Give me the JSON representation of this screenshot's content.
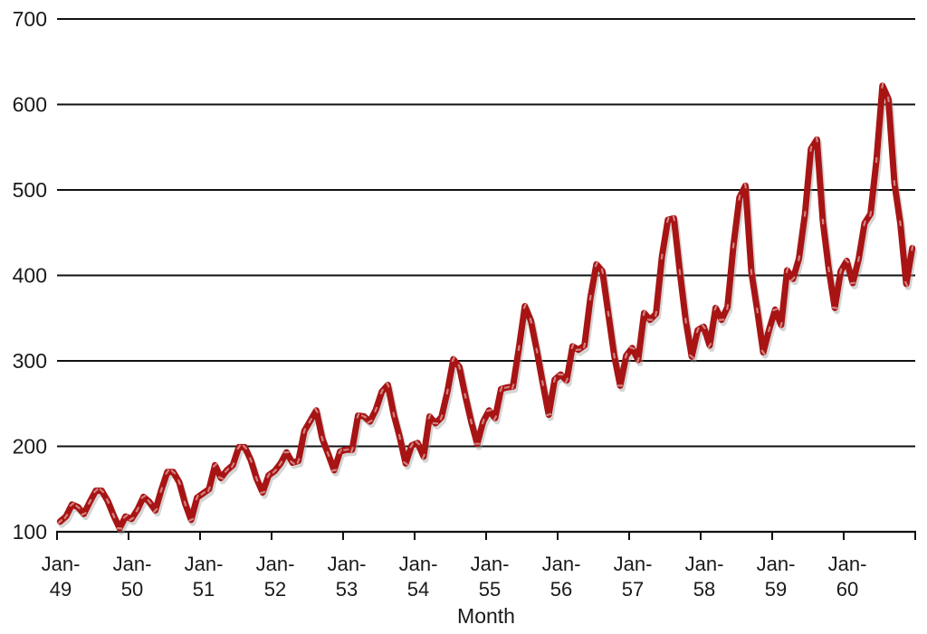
{
  "chart_data": {
    "type": "line",
    "title": "",
    "xlabel": "Month",
    "ylabel": "",
    "ylim": [
      100,
      700
    ],
    "yticks": [
      100,
      200,
      300,
      400,
      500,
      600,
      700
    ],
    "grid": "horizontal",
    "legend": "none",
    "axis_color": "#111111",
    "text_color": "#1a1a1a",
    "xticklabels": [
      {
        "top": "Jan-",
        "bottom": "49"
      },
      {
        "top": "Jan-",
        "bottom": "50"
      },
      {
        "top": "Jan-",
        "bottom": "51"
      },
      {
        "top": "Jan-",
        "bottom": "52"
      },
      {
        "top": "Jan-",
        "bottom": "53"
      },
      {
        "top": "Jan-",
        "bottom": "54"
      },
      {
        "top": "Jan-",
        "bottom": "55"
      },
      {
        "top": "Jan-",
        "bottom": "56"
      },
      {
        "top": "Jan-",
        "bottom": "57"
      },
      {
        "top": "Jan-",
        "bottom": "58"
      },
      {
        "top": "Jan-",
        "bottom": "59"
      },
      {
        "top": "Jan-",
        "bottom": "60"
      }
    ],
    "months_per_tick": 12,
    "series": [
      {
        "name": "",
        "color": "#A81414",
        "marker": "dash",
        "marker_color": "#D89694",
        "shadow_color": "#9a9a9a",
        "values": [
          112,
          118,
          132,
          129,
          121,
          135,
          148,
          148,
          136,
          119,
          104,
          118,
          115,
          126,
          141,
          135,
          125,
          149,
          170,
          170,
          158,
          133,
          114,
          140,
          145,
          150,
          178,
          163,
          172,
          178,
          199,
          199,
          184,
          162,
          146,
          166,
          171,
          180,
          193,
          181,
          183,
          218,
          230,
          242,
          209,
          191,
          172,
          194,
          196,
          196,
          236,
          235,
          229,
          243,
          264,
          272,
          237,
          211,
          180,
          201,
          204,
          188,
          235,
          227,
          234,
          264,
          302,
          293,
          259,
          229,
          203,
          229,
          242,
          233,
          267,
          269,
          270,
          315,
          364,
          347,
          312,
          274,
          237,
          278,
          284,
          277,
          317,
          313,
          318,
          374,
          413,
          405,
          355,
          306,
          271,
          306,
          315,
          301,
          356,
          348,
          355,
          422,
          465,
          467,
          404,
          347,
          305,
          336,
          340,
          318,
          362,
          348,
          363,
          435,
          491,
          505,
          404,
          359,
          310,
          337,
          360,
          342,
          406,
          396,
          420,
          472,
          548,
          559,
          463,
          407,
          362,
          405,
          417,
          391,
          419,
          461,
          472,
          535,
          622,
          606,
          508,
          461,
          390,
          432
        ]
      }
    ]
  }
}
